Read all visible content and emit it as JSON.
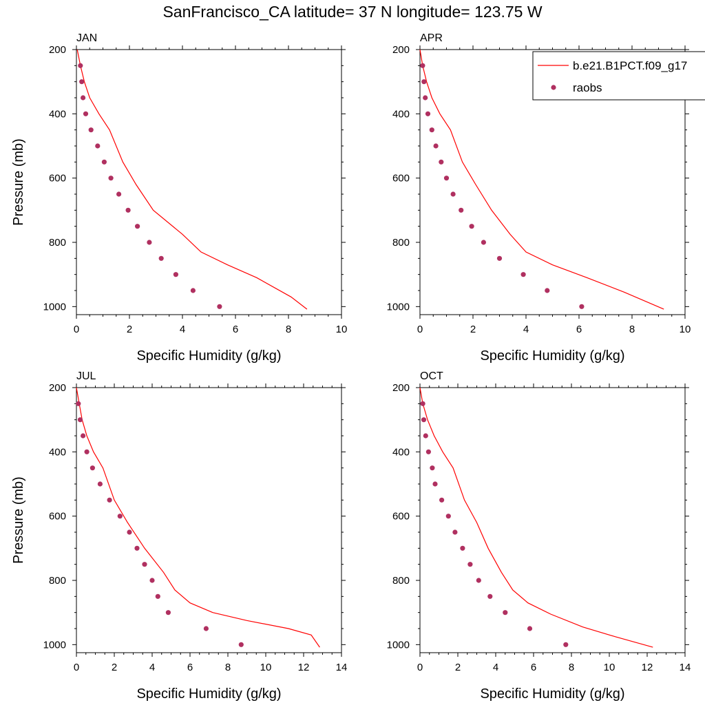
{
  "page_title": "SanFrancisco_CA  latitude= 37 N longitude= 123.75 W",
  "legend": {
    "model_label": "b.e21.B1PCT.f09_g17",
    "obs_label": "raobs",
    "model_color": "#ff0000",
    "obs_color": "#b03060"
  },
  "chart_data": [
    {
      "type": "line",
      "title": "JAN",
      "xlabel": "Specific Humidity (g/kg)",
      "ylabel": "Pressure (mb)",
      "xlim": [
        0,
        10
      ],
      "ylim": [
        1025,
        200
      ],
      "y_inverted": true,
      "xticks": [
        0,
        2,
        4,
        6,
        8,
        10
      ],
      "yticks": [
        200,
        400,
        600,
        800,
        1000
      ],
      "grid": false,
      "series": [
        {
          "name": "b.e21.B1PCT.f09_g17",
          "style": "line",
          "x": [
            0.03,
            0.15,
            0.3,
            0.5,
            0.85,
            1.25,
            1.75,
            2.25,
            2.9,
            4.0,
            4.7,
            5.7,
            6.8,
            8.1,
            8.7
          ],
          "y": [
            200,
            250,
            300,
            350,
            400,
            450,
            550,
            620,
            700,
            775,
            830,
            870,
            910,
            970,
            1008
          ]
        },
        {
          "name": "raobs",
          "style": "scatter",
          "x": [
            0.15,
            0.2,
            0.25,
            0.35,
            0.55,
            0.8,
            1.05,
            1.3,
            1.6,
            1.95,
            2.3,
            2.75,
            3.2,
            3.75,
            4.4,
            5.4
          ],
          "y": [
            250,
            300,
            350,
            400,
            450,
            500,
            550,
            600,
            650,
            700,
            750,
            800,
            850,
            900,
            950,
            1000
          ]
        }
      ]
    },
    {
      "type": "line",
      "title": "APR",
      "xlabel": "Specific Humidity (g/kg)",
      "ylabel": "",
      "xlim": [
        0,
        10
      ],
      "ylim": [
        1025,
        200
      ],
      "y_inverted": true,
      "xticks": [
        0,
        2,
        4,
        6,
        8,
        10
      ],
      "yticks": [
        200,
        400,
        600,
        800,
        1000
      ],
      "grid": false,
      "series": [
        {
          "name": "b.e21.B1PCT.f09_g17",
          "style": "line",
          "x": [
            0.0,
            0.1,
            0.25,
            0.45,
            0.75,
            1.15,
            1.6,
            2.1,
            2.7,
            3.4,
            4.0,
            5.0,
            6.3,
            7.7,
            9.2
          ],
          "y": [
            200,
            250,
            300,
            350,
            400,
            450,
            550,
            620,
            700,
            775,
            830,
            870,
            910,
            955,
            1008
          ]
        },
        {
          "name": "raobs",
          "style": "scatter",
          "x": [
            0.1,
            0.15,
            0.2,
            0.3,
            0.45,
            0.6,
            0.8,
            1.0,
            1.25,
            1.55,
            1.95,
            2.4,
            3.0,
            3.9,
            4.8,
            6.1
          ],
          "y": [
            250,
            300,
            350,
            400,
            450,
            500,
            550,
            600,
            650,
            700,
            750,
            800,
            850,
            900,
            950,
            1000
          ]
        }
      ]
    },
    {
      "type": "line",
      "title": "JUL",
      "xlabel": "Specific Humidity (g/kg)",
      "ylabel": "Pressure (mb)",
      "xlim": [
        0,
        14
      ],
      "ylim": [
        1025,
        200
      ],
      "y_inverted": true,
      "xticks": [
        0,
        2,
        4,
        6,
        8,
        10,
        12,
        14
      ],
      "yticks": [
        200,
        400,
        600,
        800,
        1000
      ],
      "grid": false,
      "series": [
        {
          "name": "b.e21.B1PCT.f09_g17",
          "style": "line",
          "x": [
            0.0,
            0.15,
            0.3,
            0.55,
            0.9,
            1.4,
            2.0,
            2.7,
            3.6,
            4.6,
            5.2,
            6.0,
            7.2,
            9.0,
            11.2,
            12.4,
            12.85
          ],
          "y": [
            200,
            250,
            300,
            350,
            400,
            450,
            550,
            620,
            700,
            775,
            830,
            870,
            900,
            925,
            950,
            970,
            1008
          ]
        },
        {
          "name": "raobs",
          "style": "scatter",
          "x": [
            0.1,
            0.2,
            0.35,
            0.55,
            0.85,
            1.25,
            1.75,
            2.3,
            2.8,
            3.2,
            3.6,
            4.0,
            4.3,
            4.85,
            6.85,
            8.7
          ],
          "y": [
            250,
            300,
            350,
            400,
            450,
            500,
            550,
            600,
            650,
            700,
            750,
            800,
            850,
            900,
            950,
            1000
          ]
        }
      ]
    },
    {
      "type": "line",
      "title": "OCT",
      "xlabel": "Specific Humidity (g/kg)",
      "ylabel": "",
      "xlim": [
        0,
        14
      ],
      "ylim": [
        1025,
        200
      ],
      "y_inverted": true,
      "xticks": [
        0,
        2,
        4,
        6,
        8,
        10,
        12,
        14
      ],
      "yticks": [
        200,
        400,
        600,
        800,
        1000
      ],
      "grid": false,
      "series": [
        {
          "name": "b.e21.B1PCT.f09_g17",
          "style": "line",
          "x": [
            0.0,
            0.15,
            0.4,
            0.75,
            1.2,
            1.75,
            2.35,
            3.0,
            3.6,
            4.3,
            4.9,
            5.7,
            6.9,
            8.6,
            10.3,
            12.3
          ],
          "y": [
            200,
            250,
            300,
            350,
            400,
            450,
            550,
            620,
            700,
            775,
            830,
            870,
            905,
            945,
            975,
            1008
          ]
        },
        {
          "name": "raobs",
          "style": "scatter",
          "x": [
            0.15,
            0.2,
            0.3,
            0.45,
            0.65,
            0.8,
            1.15,
            1.5,
            1.85,
            2.25,
            2.65,
            3.1,
            3.7,
            4.5,
            5.8,
            7.7
          ],
          "y": [
            250,
            300,
            350,
            400,
            450,
            500,
            550,
            600,
            650,
            700,
            750,
            800,
            850,
            900,
            950,
            1000
          ]
        }
      ]
    }
  ]
}
